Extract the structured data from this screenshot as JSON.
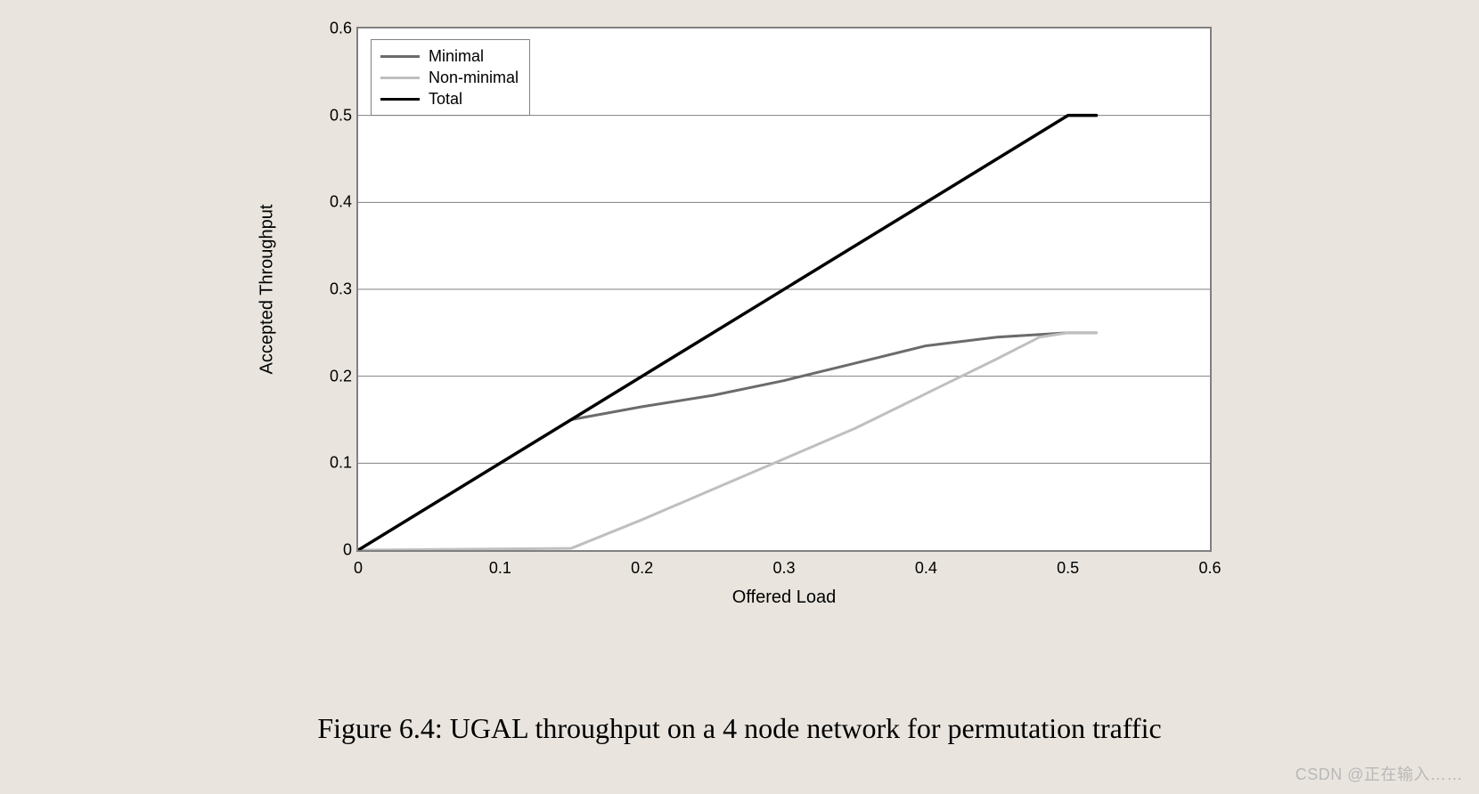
{
  "chart": {
    "type": "line",
    "background_color": "#e9e5de",
    "plot_background_color": "#ffffff",
    "plot_border_color": "#808080",
    "grid_color": "#808080",
    "x_axis": {
      "label": "Offered Load",
      "min": 0,
      "max": 0.6,
      "tick_step": 0.1,
      "ticks": [
        "0",
        "0.1",
        "0.2",
        "0.3",
        "0.4",
        "0.5",
        "0.6"
      ],
      "label_fontsize": 20,
      "tick_fontsize": 18
    },
    "y_axis": {
      "label": "Accepted Throughput",
      "min": 0,
      "max": 0.6,
      "tick_step": 0.1,
      "ticks": [
        "0",
        "0.1",
        "0.2",
        "0.3",
        "0.4",
        "0.5",
        "0.6"
      ],
      "label_fontsize": 20,
      "tick_fontsize": 18
    },
    "series": [
      {
        "name": "Minimal",
        "color": "#6b6b6b",
        "line_width": 3,
        "points": [
          [
            0.0,
            0.0
          ],
          [
            0.15,
            0.15
          ],
          [
            0.2,
            0.165
          ],
          [
            0.25,
            0.178
          ],
          [
            0.3,
            0.195
          ],
          [
            0.35,
            0.215
          ],
          [
            0.4,
            0.235
          ],
          [
            0.45,
            0.245
          ],
          [
            0.5,
            0.25
          ],
          [
            0.52,
            0.25
          ]
        ]
      },
      {
        "name": "Non-minimal",
        "color": "#bfbfbf",
        "line_width": 3,
        "points": [
          [
            0.0,
            0.0
          ],
          [
            0.15,
            0.002
          ],
          [
            0.2,
            0.035
          ],
          [
            0.25,
            0.07
          ],
          [
            0.3,
            0.105
          ],
          [
            0.35,
            0.14
          ],
          [
            0.4,
            0.18
          ],
          [
            0.45,
            0.22
          ],
          [
            0.48,
            0.245
          ],
          [
            0.5,
            0.25
          ],
          [
            0.52,
            0.25
          ]
        ]
      },
      {
        "name": "Total",
        "color": "#000000",
        "line_width": 3.5,
        "points": [
          [
            0.0,
            0.0
          ],
          [
            0.5,
            0.5
          ],
          [
            0.52,
            0.5
          ]
        ]
      }
    ],
    "legend": {
      "position": "top-left",
      "border_color": "#808080",
      "background_color": "#ffffff",
      "fontsize": 18,
      "items": [
        {
          "label": "Minimal",
          "color": "#6b6b6b"
        },
        {
          "label": "Non-minimal",
          "color": "#bfbfbf"
        },
        {
          "label": "Total",
          "color": "#000000"
        }
      ]
    }
  },
  "caption": "Figure 6.4: UGAL throughput on a 4 node network for permutation traffic",
  "caption_fontsize": 32,
  "caption_font": "Times New Roman",
  "watermark": "CSDN @正在输入……"
}
